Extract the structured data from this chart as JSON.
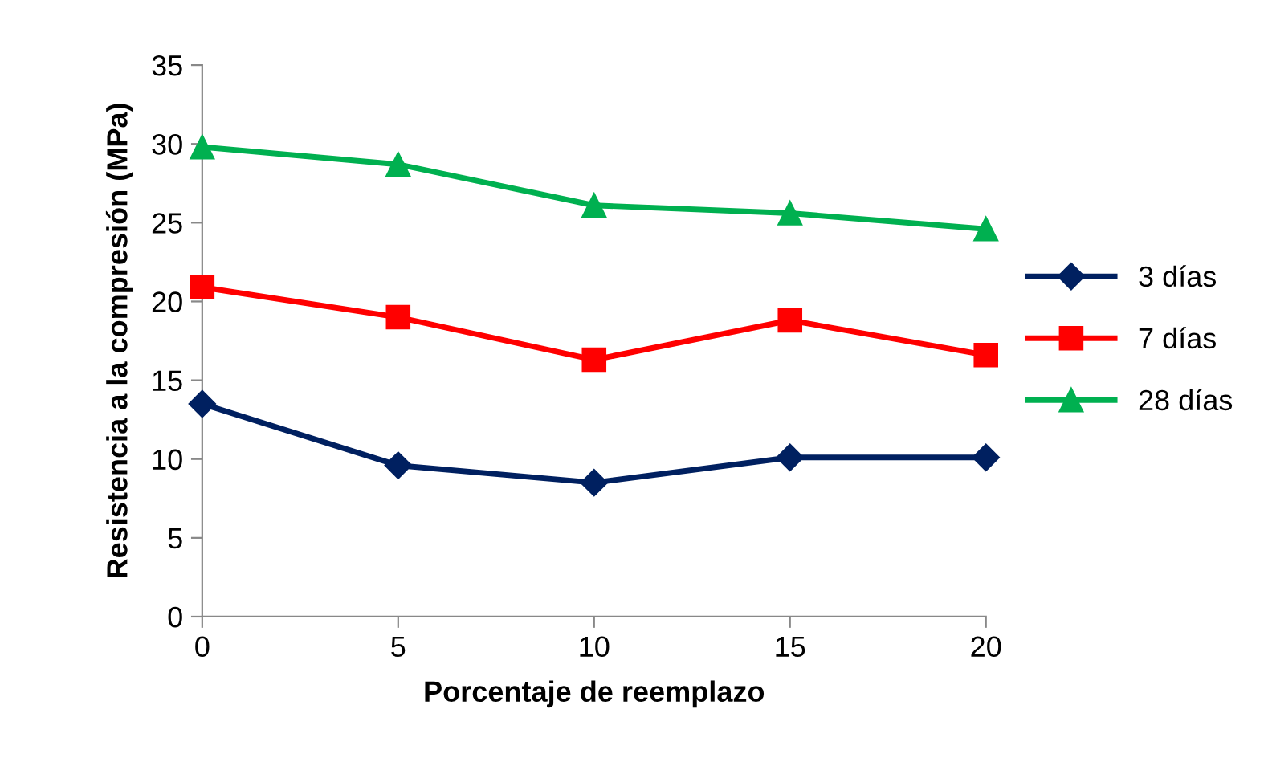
{
  "chart_data": {
    "type": "line",
    "xlabel": "Porcentaje de reemplazo",
    "ylabel": "Resistencia a la compresión (MPa)",
    "x": [
      0,
      5,
      10,
      15,
      20
    ],
    "series": [
      {
        "name": "3 días",
        "color": "#002060",
        "marker": "diamond",
        "values": [
          13.5,
          9.6,
          8.5,
          10.1,
          10.1
        ]
      },
      {
        "name": "7 días",
        "color": "#ff0000",
        "marker": "square",
        "values": [
          20.9,
          19.0,
          16.3,
          18.8,
          16.6
        ]
      },
      {
        "name": "28 días",
        "color": "#00b050",
        "marker": "triangle",
        "values": [
          29.8,
          28.7,
          26.1,
          25.6,
          24.6
        ]
      }
    ],
    "xlim": [
      0,
      20
    ],
    "xticks": [
      0,
      5,
      10,
      15,
      20
    ],
    "ylim": [
      0,
      35
    ],
    "yticks": [
      0,
      5,
      10,
      15,
      20,
      25,
      30,
      35
    ],
    "grid": false,
    "legend": "right",
    "line_style": "solid"
  }
}
